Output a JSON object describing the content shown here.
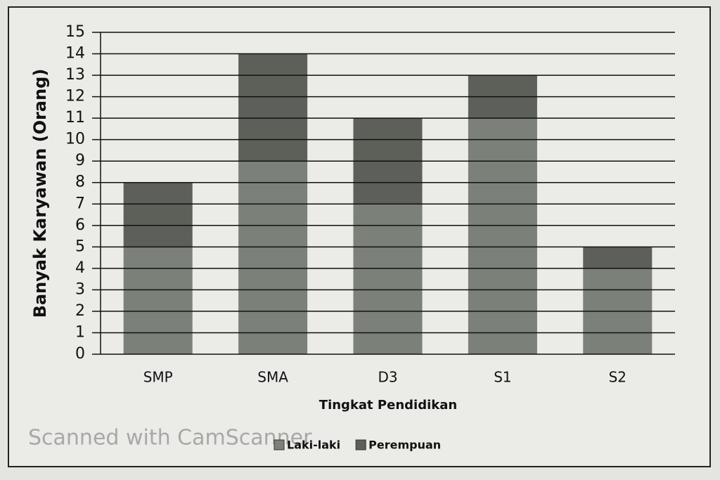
{
  "chart_data": {
    "type": "stacked_bar",
    "y_label": "Banyak Karyawan (Orang)",
    "x_label": "Tingkat Pendidikan",
    "categories": [
      "SMP",
      "SMA",
      "D3",
      "S1",
      "S2"
    ],
    "series": [
      {
        "name": "Laki-laki",
        "color": "#7b8078",
        "values": [
          5,
          9,
          7,
          11,
          4
        ]
      },
      {
        "name": "Perempuan",
        "color": "#5c6059",
        "values": [
          3,
          5,
          4,
          2,
          1
        ]
      }
    ],
    "ylim": [
      0,
      15
    ],
    "yticks": [
      0,
      1,
      2,
      3,
      4,
      5,
      6,
      7,
      8,
      9,
      10,
      11,
      12,
      13,
      14,
      15
    ],
    "grid": true,
    "legend": "bottom",
    "watermark": "Scanned with CamScanner"
  }
}
